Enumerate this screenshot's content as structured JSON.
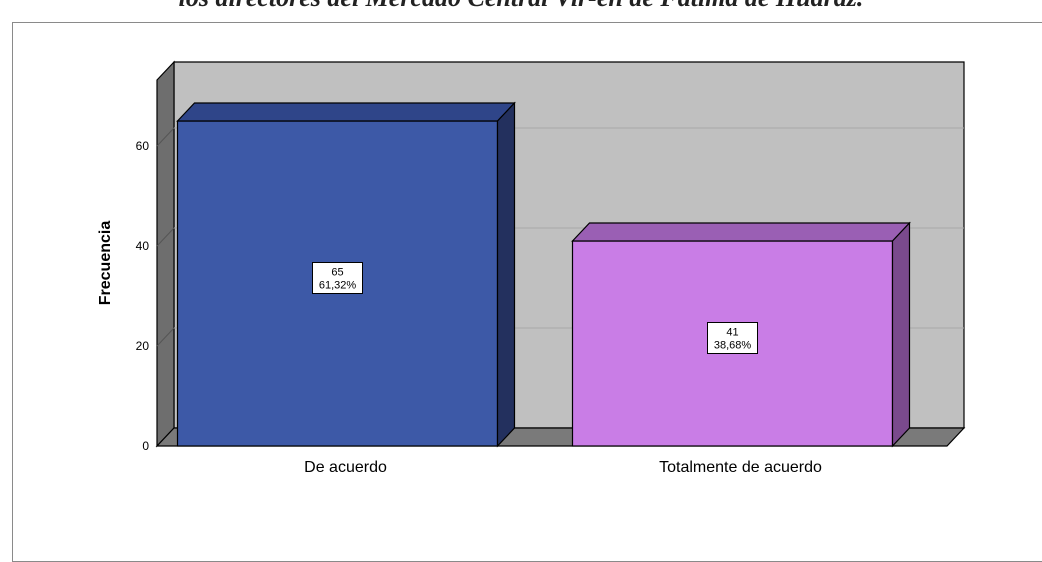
{
  "caption": "los directores del Mercado Central Vir-en de Fatima de Huaraz.",
  "chart_data": {
    "type": "bar",
    "categories": [
      "De acuerdo",
      "Totalmente de acuerdo"
    ],
    "values": [
      65,
      41
    ],
    "percents": [
      "61,32%",
      "38,68%"
    ],
    "title": "",
    "xlabel": "",
    "ylabel": "Frecuencia",
    "ylim": [
      0,
      70
    ],
    "yticks": [
      0,
      20,
      40,
      60
    ],
    "grid": true,
    "bar_colors": [
      "#3d59a7",
      "#c97de6"
    ],
    "bar_side_colors": [
      "#23305e",
      "#7a4a8d"
    ],
    "bar_top_colors": [
      "#2f4589",
      "#9a5fb4"
    ],
    "wall_color": "#c0c0c0",
    "floor_color": "#7a7a7a"
  }
}
